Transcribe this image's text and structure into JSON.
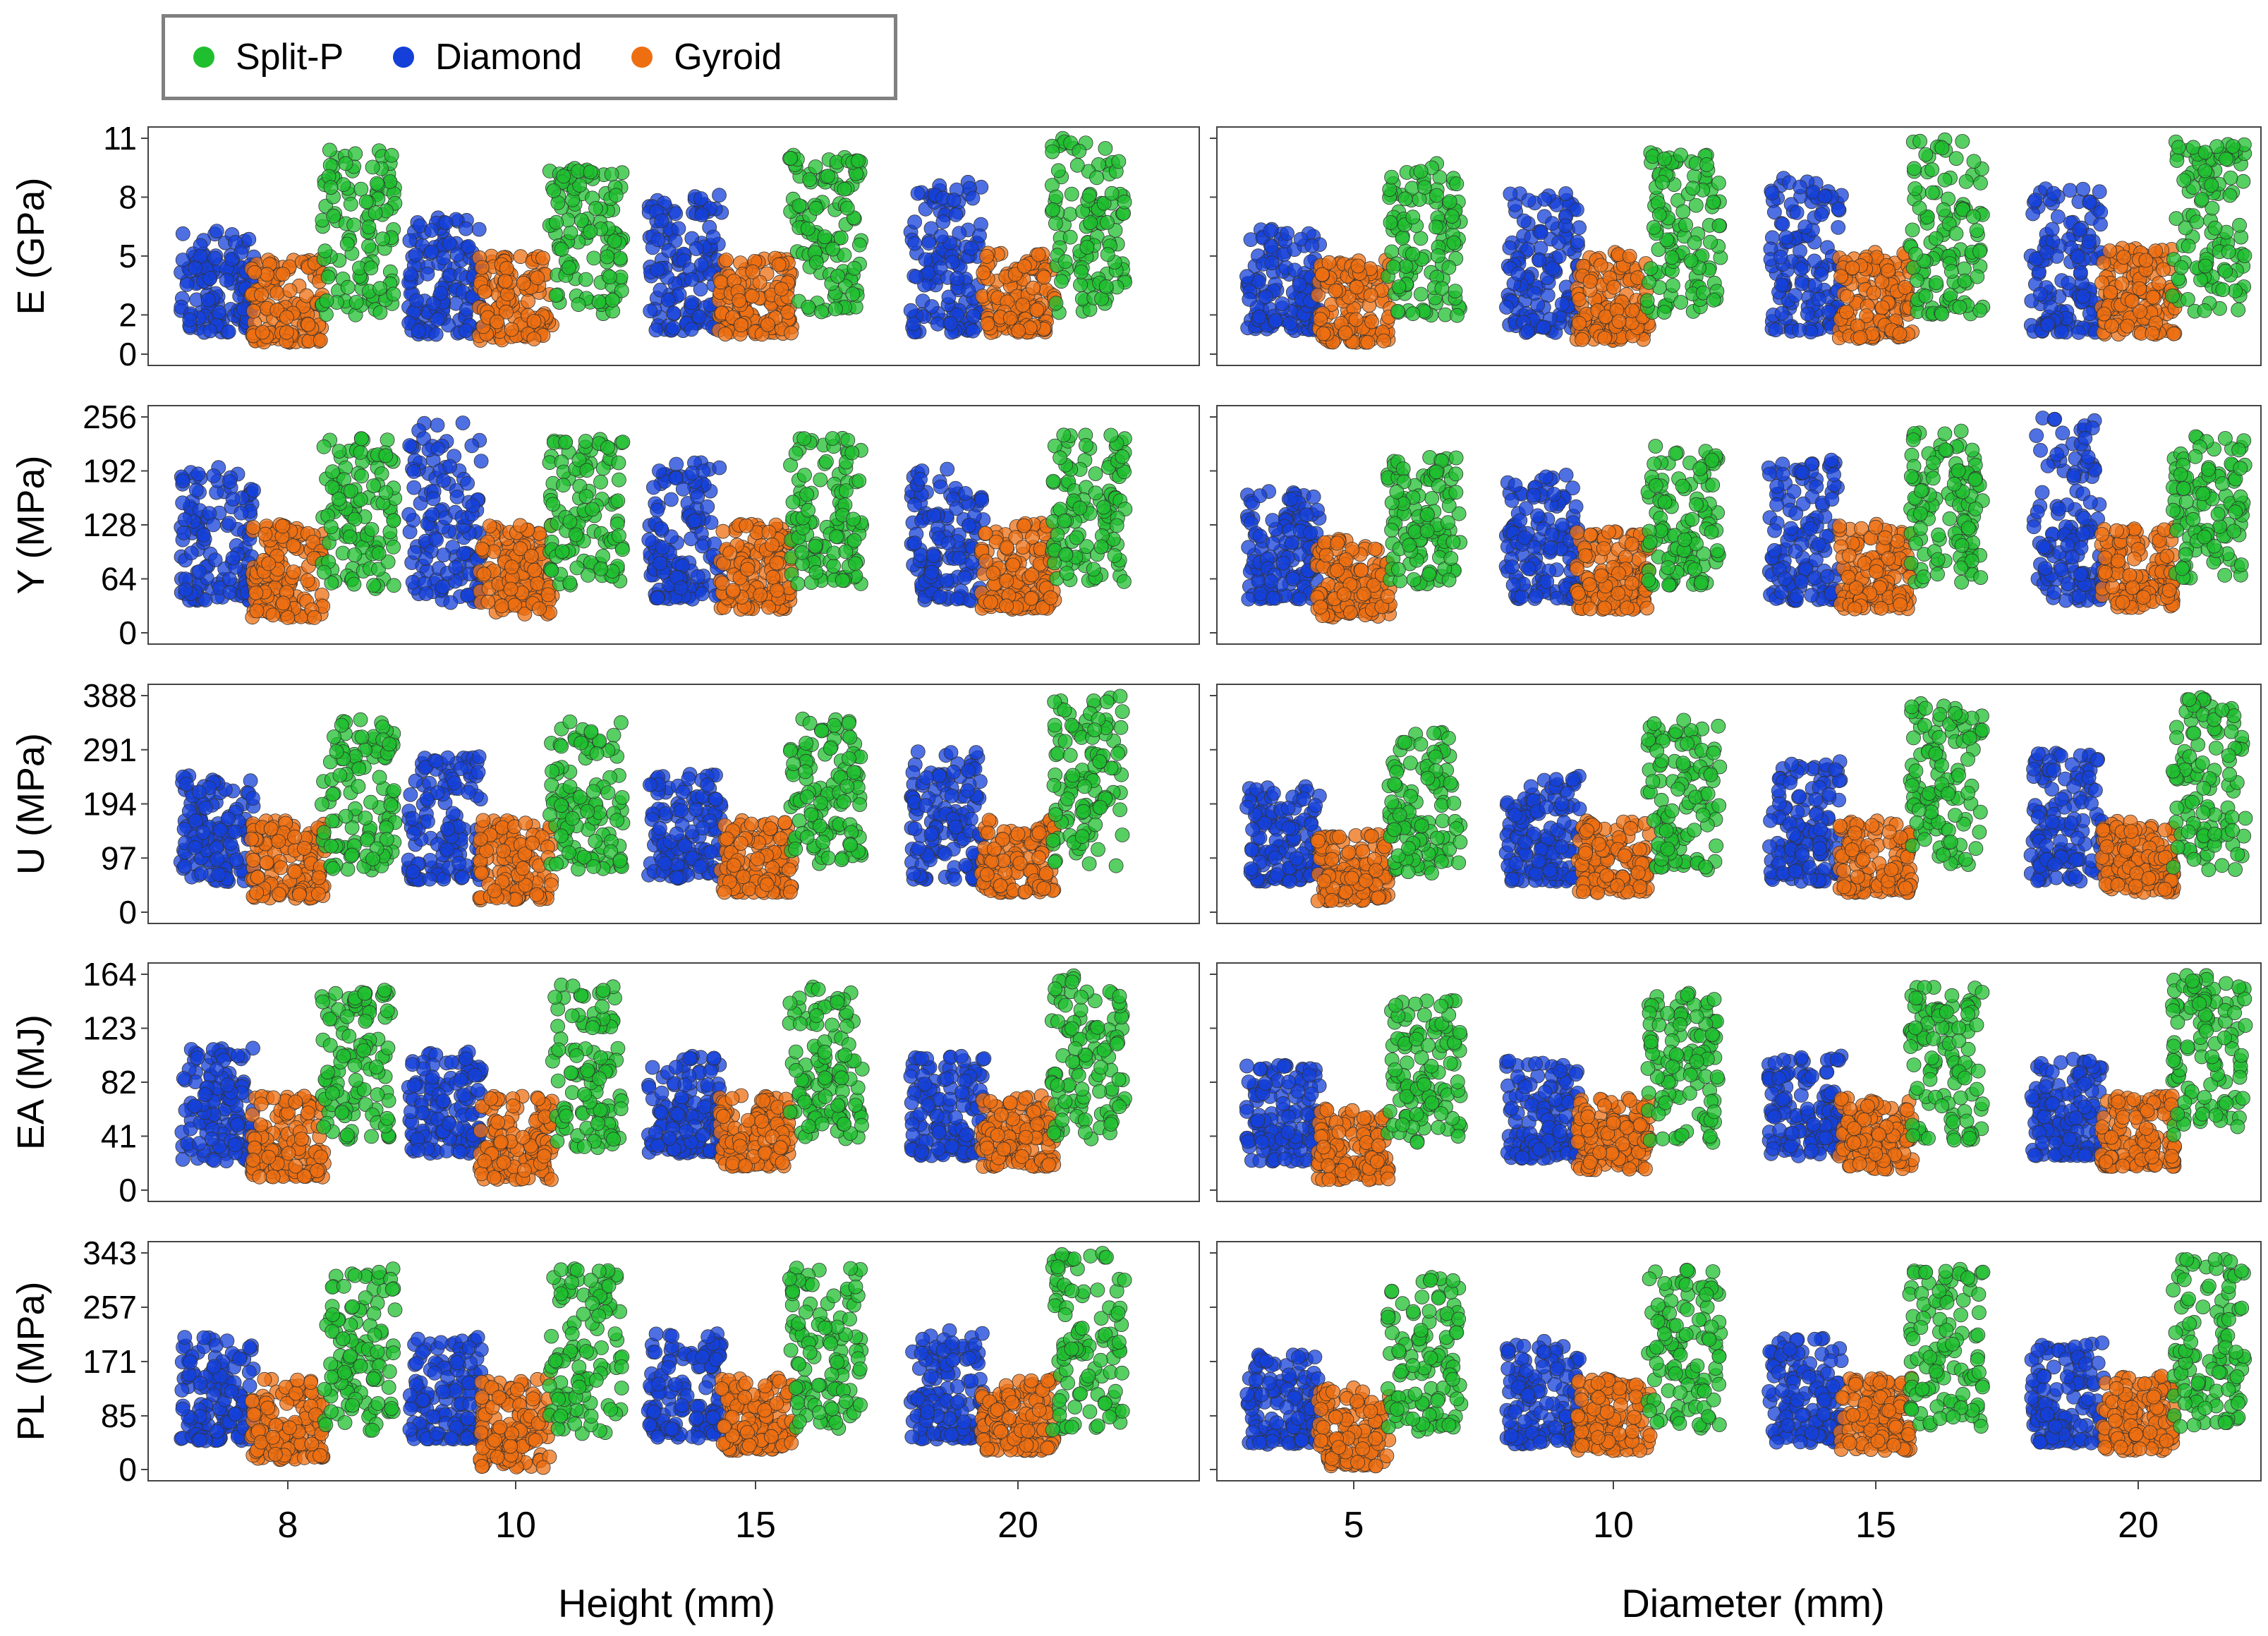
{
  "legend": {
    "items": [
      {
        "label": "Split-P",
        "color": "#1fbf2f"
      },
      {
        "label": "Diamond",
        "color": "#1440d9"
      },
      {
        "label": "Gyroid",
        "color": "#ee6f12"
      }
    ]
  },
  "chart_data": {
    "type": "scatter",
    "style": "jittered strip plot",
    "series": [
      {
        "name": "Diamond",
        "color": "#1440d9"
      },
      {
        "name": "Gyroid",
        "color": "#ee6f12"
      },
      {
        "name": "Split-P",
        "color": "#1fbf2f"
      }
    ],
    "columns": [
      {
        "xlabel": "Height (mm)",
        "categories": [
          "8",
          "10",
          "15",
          "20"
        ]
      },
      {
        "xlabel": "Diameter (mm)",
        "categories": [
          "5",
          "10",
          "15",
          "20"
        ]
      }
    ],
    "rows": [
      {
        "ylabel": "E (GPa)",
        "ylim": [
          0,
          11
        ],
        "ticks": [
          "0",
          "2",
          "5",
          "8",
          "11"
        ],
        "ranges": {
          "Diamond": [
            [
              1.1,
              6.3
            ],
            [
              1.0,
              7.0
            ],
            [
              1.2,
              8.2
            ],
            [
              1.1,
              8.8
            ]
          ],
          "Gyroid": [
            [
              0.6,
              5.0
            ],
            [
              0.7,
              5.0
            ],
            [
              1.0,
              5.0
            ],
            [
              1.1,
              5.2
            ]
          ],
          "Split-P": [
            [
              2.0,
              10.5
            ],
            [
              2.0,
              9.5
            ],
            [
              2.1,
              10.2
            ],
            [
              2.0,
              11.0
            ]
          ]
        },
        "ranges_diameter": {
          "Diamond": [
            [
              1.2,
              6.5
            ],
            [
              1.1,
              8.2
            ],
            [
              1.1,
              9.0
            ],
            [
              1.1,
              8.5
            ]
          ],
          "Gyroid": [
            [
              0.6,
              4.8
            ],
            [
              0.7,
              5.2
            ],
            [
              0.8,
              5.2
            ],
            [
              1.0,
              5.5
            ]
          ],
          "Split-P": [
            [
              1.9,
              9.8
            ],
            [
              2.1,
              10.3
            ],
            [
              2.0,
              11.0
            ],
            [
              2.0,
              10.9
            ]
          ]
        }
      },
      {
        "ylabel": "Y (MPa)",
        "ylim": [
          0,
          256
        ],
        "ticks": [
          "0",
          "64",
          "128",
          "192",
          "256"
        ],
        "ranges": {
          "Diamond": [
            [
              38,
              198
            ],
            [
              35,
              252
            ],
            [
              40,
              205
            ],
            [
              38,
              195
            ]
          ],
          "Gyroid": [
            [
              18,
              130
            ],
            [
              22,
              128
            ],
            [
              28,
              130
            ],
            [
              28,
              130
            ]
          ],
          "Split-P": [
            [
              52,
              232
            ],
            [
              55,
              230
            ],
            [
              58,
              232
            ],
            [
              60,
              240
            ]
          ]
        },
        "ranges_diameter": {
          "Diamond": [
            [
              40,
              168
            ],
            [
              40,
              188
            ],
            [
              38,
              205
            ],
            [
              38,
              255
            ]
          ],
          "Gyroid": [
            [
              18,
              112
            ],
            [
              28,
              120
            ],
            [
              28,
              130
            ],
            [
              30,
              125
            ]
          ],
          "Split-P": [
            [
              55,
              212
            ],
            [
              55,
              222
            ],
            [
              60,
              240
            ],
            [
              60,
              235
            ]
          ]
        }
      },
      {
        "ylabel": "U (MPa)",
        "ylim": [
          0,
          388
        ],
        "ticks": [
          "0",
          "97",
          "194",
          "291",
          "388"
        ],
        "ranges": {
          "Diamond": [
            [
              55,
              245
            ],
            [
              58,
              280
            ],
            [
              60,
              248
            ],
            [
              58,
              290
            ]
          ],
          "Gyroid": [
            [
              25,
              165
            ],
            [
              22,
              165
            ],
            [
              35,
              165
            ],
            [
              35,
              165
            ]
          ],
          "Split-P": [
            [
              75,
              345
            ],
            [
              72,
              345
            ],
            [
              80,
              350
            ],
            [
              75,
              388
            ]
          ]
        },
        "ranges_diameter": {
          "Diamond": [
            [
              55,
              225
            ],
            [
              55,
              245
            ],
            [
              55,
              270
            ],
            [
              55,
              285
            ]
          ],
          "Gyroid": [
            [
              20,
              140
            ],
            [
              35,
              165
            ],
            [
              35,
              165
            ],
            [
              35,
              165
            ]
          ],
          "Split-P": [
            [
              70,
              325
            ],
            [
              75,
              345
            ],
            [
              80,
              378
            ],
            [
              75,
              388
            ]
          ]
        }
      },
      {
        "ylabel": "EA (MJ)",
        "ylim": [
          0,
          164
        ],
        "ticks": [
          "0",
          "41",
          "82",
          "123",
          "164"
        ],
        "ranges": {
          "Diamond": [
            [
              22,
              108
            ],
            [
              28,
              105
            ],
            [
              28,
              102
            ],
            [
              26,
              102
            ]
          ],
          "Gyroid": [
            [
              10,
              72
            ],
            [
              8,
              72
            ],
            [
              18,
              72
            ],
            [
              18,
              72
            ]
          ],
          "Split-P": [
            [
              38,
              152
            ],
            [
              32,
              156
            ],
            [
              38,
              155
            ],
            [
              38,
              164
            ]
          ]
        },
        "ranges_diameter": {
          "Diamond": [
            [
              22,
              95
            ],
            [
              24,
              100
            ],
            [
              26,
              102
            ],
            [
              26,
              102
            ]
          ],
          "Gyroid": [
            [
              8,
              62
            ],
            [
              15,
              70
            ],
            [
              16,
              70
            ],
            [
              18,
              72
            ]
          ],
          "Split-P": [
            [
              35,
              145
            ],
            [
              36,
              150
            ],
            [
              38,
              155
            ],
            [
              42,
              164
            ]
          ]
        }
      },
      {
        "ylabel": "PL (MPa)",
        "ylim": [
          0,
          343
        ],
        "ticks": [
          "0",
          "85",
          "171",
          "257",
          "343"
        ],
        "ranges": {
          "Diamond": [
            [
              45,
              210
            ],
            [
              48,
              210
            ],
            [
              50,
              215
            ],
            [
              48,
              220
            ]
          ],
          "Gyroid": [
            [
              15,
              145
            ],
            [
              2,
              145
            ],
            [
              30,
              145
            ],
            [
              30,
              145
            ]
          ],
          "Split-P": [
            [
              60,
              318
            ],
            [
              55,
              318
            ],
            [
              62,
              320
            ],
            [
              60,
              343
            ]
          ]
        },
        "ranges_diameter": {
          "Diamond": [
            [
              40,
              185
            ],
            [
              40,
              205
            ],
            [
              42,
              210
            ],
            [
              42,
              210
            ]
          ],
          "Gyroid": [
            [
              5,
              130
            ],
            [
              30,
              145
            ],
            [
              30,
              145
            ],
            [
              30,
              148
            ]
          ],
          "Split-P": [
            [
              60,
              305
            ],
            [
              65,
              318
            ],
            [
              68,
              318
            ],
            [
              68,
              335
            ]
          ]
        }
      }
    ]
  }
}
